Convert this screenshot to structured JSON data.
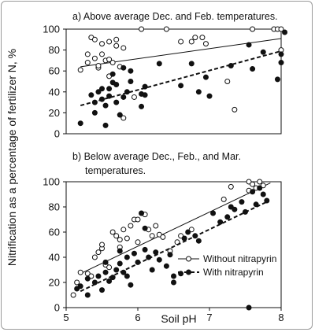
{
  "figure": {
    "ylabel": "Nitrification as a percentage of fertilizer N, %",
    "xlabel": "Soil pH",
    "legend": {
      "without": "Without nitrapyrin",
      "with": "With nitrapyrin"
    }
  },
  "chart_data": [
    {
      "type": "scatter",
      "title": "a) Above average Dec. and Feb. temperatures.",
      "xlim": [
        5,
        8
      ],
      "ylim": [
        0,
        100
      ],
      "yticks": [
        "0",
        "20",
        "40",
        "60",
        "80",
        "100"
      ],
      "grid": false,
      "series": [
        {
          "name": "Without nitrapyrin",
          "marker": "open-circle",
          "points": [
            [
              5.2,
              61
            ],
            [
              5.3,
              68
            ],
            [
              5.3,
              76
            ],
            [
              5.35,
              92
            ],
            [
              5.4,
              90
            ],
            [
              5.4,
              72
            ],
            [
              5.45,
              63
            ],
            [
              5.45,
              65
            ],
            [
              5.5,
              86
            ],
            [
              5.5,
              76
            ],
            [
              5.55,
              70
            ],
            [
              5.6,
              88
            ],
            [
              5.6,
              71
            ],
            [
              5.6,
              55
            ],
            [
              5.65,
              68
            ],
            [
              5.7,
              90
            ],
            [
              5.7,
              84
            ],
            [
              5.75,
              64
            ],
            [
              5.8,
              82
            ],
            [
              5.8,
              15
            ],
            [
              5.95,
              35
            ],
            [
              6.05,
              100
            ],
            [
              6.4,
              100
            ],
            [
              6.6,
              88
            ],
            [
              6.75,
              88
            ],
            [
              6.8,
              92
            ],
            [
              6.9,
              92
            ],
            [
              6.95,
              86
            ],
            [
              7.25,
              50
            ],
            [
              7.35,
              23
            ],
            [
              7.6,
              100
            ],
            [
              7.9,
              100
            ],
            [
              7.95,
              100
            ],
            [
              8.0,
              100
            ],
            [
              8.0,
              80
            ]
          ],
          "trend": [
            [
              5.2,
              64
            ],
            [
              8.0,
              91
            ]
          ]
        },
        {
          "name": "With nitrapyrin",
          "marker": "filled-circle",
          "points": [
            [
              5.2,
              10
            ],
            [
              5.35,
              37
            ],
            [
              5.4,
              30
            ],
            [
              5.4,
              20
            ],
            [
              5.45,
              40
            ],
            [
              5.5,
              43
            ],
            [
              5.5,
              33
            ],
            [
              5.55,
              8
            ],
            [
              5.55,
              27
            ],
            [
              5.6,
              43
            ],
            [
              5.6,
              36
            ],
            [
              5.65,
              57
            ],
            [
              5.65,
              49
            ],
            [
              5.7,
              47
            ],
            [
              5.7,
              30
            ],
            [
              5.75,
              18
            ],
            [
              5.8,
              63
            ],
            [
              5.8,
              35
            ],
            [
              5.85,
              40
            ],
            [
              5.9,
              60
            ],
            [
              5.9,
              50
            ],
            [
              6.05,
              38
            ],
            [
              6.05,
              26
            ],
            [
              6.1,
              37
            ],
            [
              6.1,
              45
            ],
            [
              6.3,
              67
            ],
            [
              6.6,
              46
            ],
            [
              6.75,
              67
            ],
            [
              6.85,
              40
            ],
            [
              6.95,
              54
            ],
            [
              7.0,
              36
            ],
            [
              7.3,
              65
            ],
            [
              7.55,
              85
            ],
            [
              7.6,
              62
            ],
            [
              7.75,
              78
            ],
            [
              7.95,
              52
            ],
            [
              8.0,
              68
            ],
            [
              8.0,
              76
            ],
            [
              8.05,
              97
            ]
          ],
          "trend": [
            [
              5.2,
              27
            ],
            [
              8.0,
              79
            ]
          ]
        }
      ]
    },
    {
      "type": "scatter",
      "title": "b) Below average Dec., Feb., and Mar. temperatures.",
      "xlim": [
        5,
        8
      ],
      "ylim": [
        0,
        100
      ],
      "xticks": [
        "5",
        "6",
        "7",
        "8"
      ],
      "yticks": [
        "0",
        "20",
        "40",
        "60",
        "80",
        "100"
      ],
      "grid": false,
      "legend_position": "bottom-right",
      "series": [
        {
          "name": "Without nitrapyrin",
          "marker": "open-circle",
          "points": [
            [
              5.1,
              10
            ],
            [
              5.15,
              20
            ],
            [
              5.2,
              28
            ],
            [
              5.3,
              27
            ],
            [
              5.35,
              25
            ],
            [
              5.4,
              40
            ],
            [
              5.45,
              44
            ],
            [
              5.5,
              47
            ],
            [
              5.5,
              50
            ],
            [
              5.55,
              34
            ],
            [
              5.6,
              32
            ],
            [
              5.65,
              60
            ],
            [
              5.7,
              57
            ],
            [
              5.75,
              54
            ],
            [
              5.75,
              48
            ],
            [
              5.8,
              62
            ],
            [
              5.85,
              55
            ],
            [
              5.9,
              65
            ],
            [
              5.95,
              70
            ],
            [
              6.0,
              70
            ],
            [
              6.0,
              52
            ],
            [
              6.1,
              74
            ],
            [
              6.15,
              62
            ],
            [
              6.2,
              57
            ],
            [
              6.25,
              65
            ],
            [
              6.3,
              58
            ],
            [
              6.35,
              56
            ],
            [
              6.45,
              45
            ],
            [
              6.55,
              52
            ],
            [
              6.6,
              57
            ],
            [
              6.75,
              62
            ],
            [
              7.2,
              86
            ],
            [
              7.3,
              96
            ],
            [
              7.55,
              100
            ],
            [
              7.6,
              98
            ],
            [
              7.65,
              95
            ],
            [
              7.7,
              100
            ],
            [
              7.75,
              97
            ],
            [
              7.55,
              93
            ]
          ],
          "trend": [
            [
              5.2,
              27
            ],
            [
              7.85,
              99
            ]
          ]
        },
        {
          "name": "With nitrapyrin",
          "marker": "filled-circle",
          "points": [
            [
              5.15,
              15
            ],
            [
              5.2,
              17
            ],
            [
              5.3,
              10
            ],
            [
              5.3,
              23
            ],
            [
              5.4,
              20
            ],
            [
              5.45,
              25
            ],
            [
              5.5,
              14
            ],
            [
              5.55,
              36
            ],
            [
              5.55,
              28
            ],
            [
              5.6,
              21
            ],
            [
              5.65,
              24
            ],
            [
              5.7,
              30
            ],
            [
              5.75,
              45
            ],
            [
              5.75,
              35
            ],
            [
              5.8,
              28
            ],
            [
              5.85,
              40
            ],
            [
              5.85,
              25
            ],
            [
              5.9,
              18
            ],
            [
              5.95,
              43
            ],
            [
              6.0,
              36
            ],
            [
              6.05,
              75
            ],
            [
              6.1,
              63
            ],
            [
              6.1,
              46
            ],
            [
              6.15,
              40
            ],
            [
              6.2,
              30
            ],
            [
              6.25,
              44
            ],
            [
              6.3,
              38
            ],
            [
              6.4,
              33
            ],
            [
              6.45,
              42
            ],
            [
              6.5,
              25
            ],
            [
              6.5,
              20
            ],
            [
              6.6,
              27
            ],
            [
              6.65,
              55
            ],
            [
              6.7,
              60
            ],
            [
              6.8,
              57
            ],
            [
              6.85,
              53
            ],
            [
              7.05,
              75
            ],
            [
              7.15,
              68
            ],
            [
              7.25,
              72
            ],
            [
              7.3,
              80
            ],
            [
              7.35,
              78
            ],
            [
              7.45,
              84
            ],
            [
              7.5,
              76
            ],
            [
              7.55,
              0
            ],
            [
              7.6,
              92
            ],
            [
              7.65,
              82
            ],
            [
              7.7,
              95
            ],
            [
              7.75,
              90
            ],
            [
              7.8,
              85
            ]
          ],
          "trend": [
            [
              5.2,
              13
            ],
            [
              7.8,
              84
            ]
          ]
        }
      ]
    }
  ]
}
